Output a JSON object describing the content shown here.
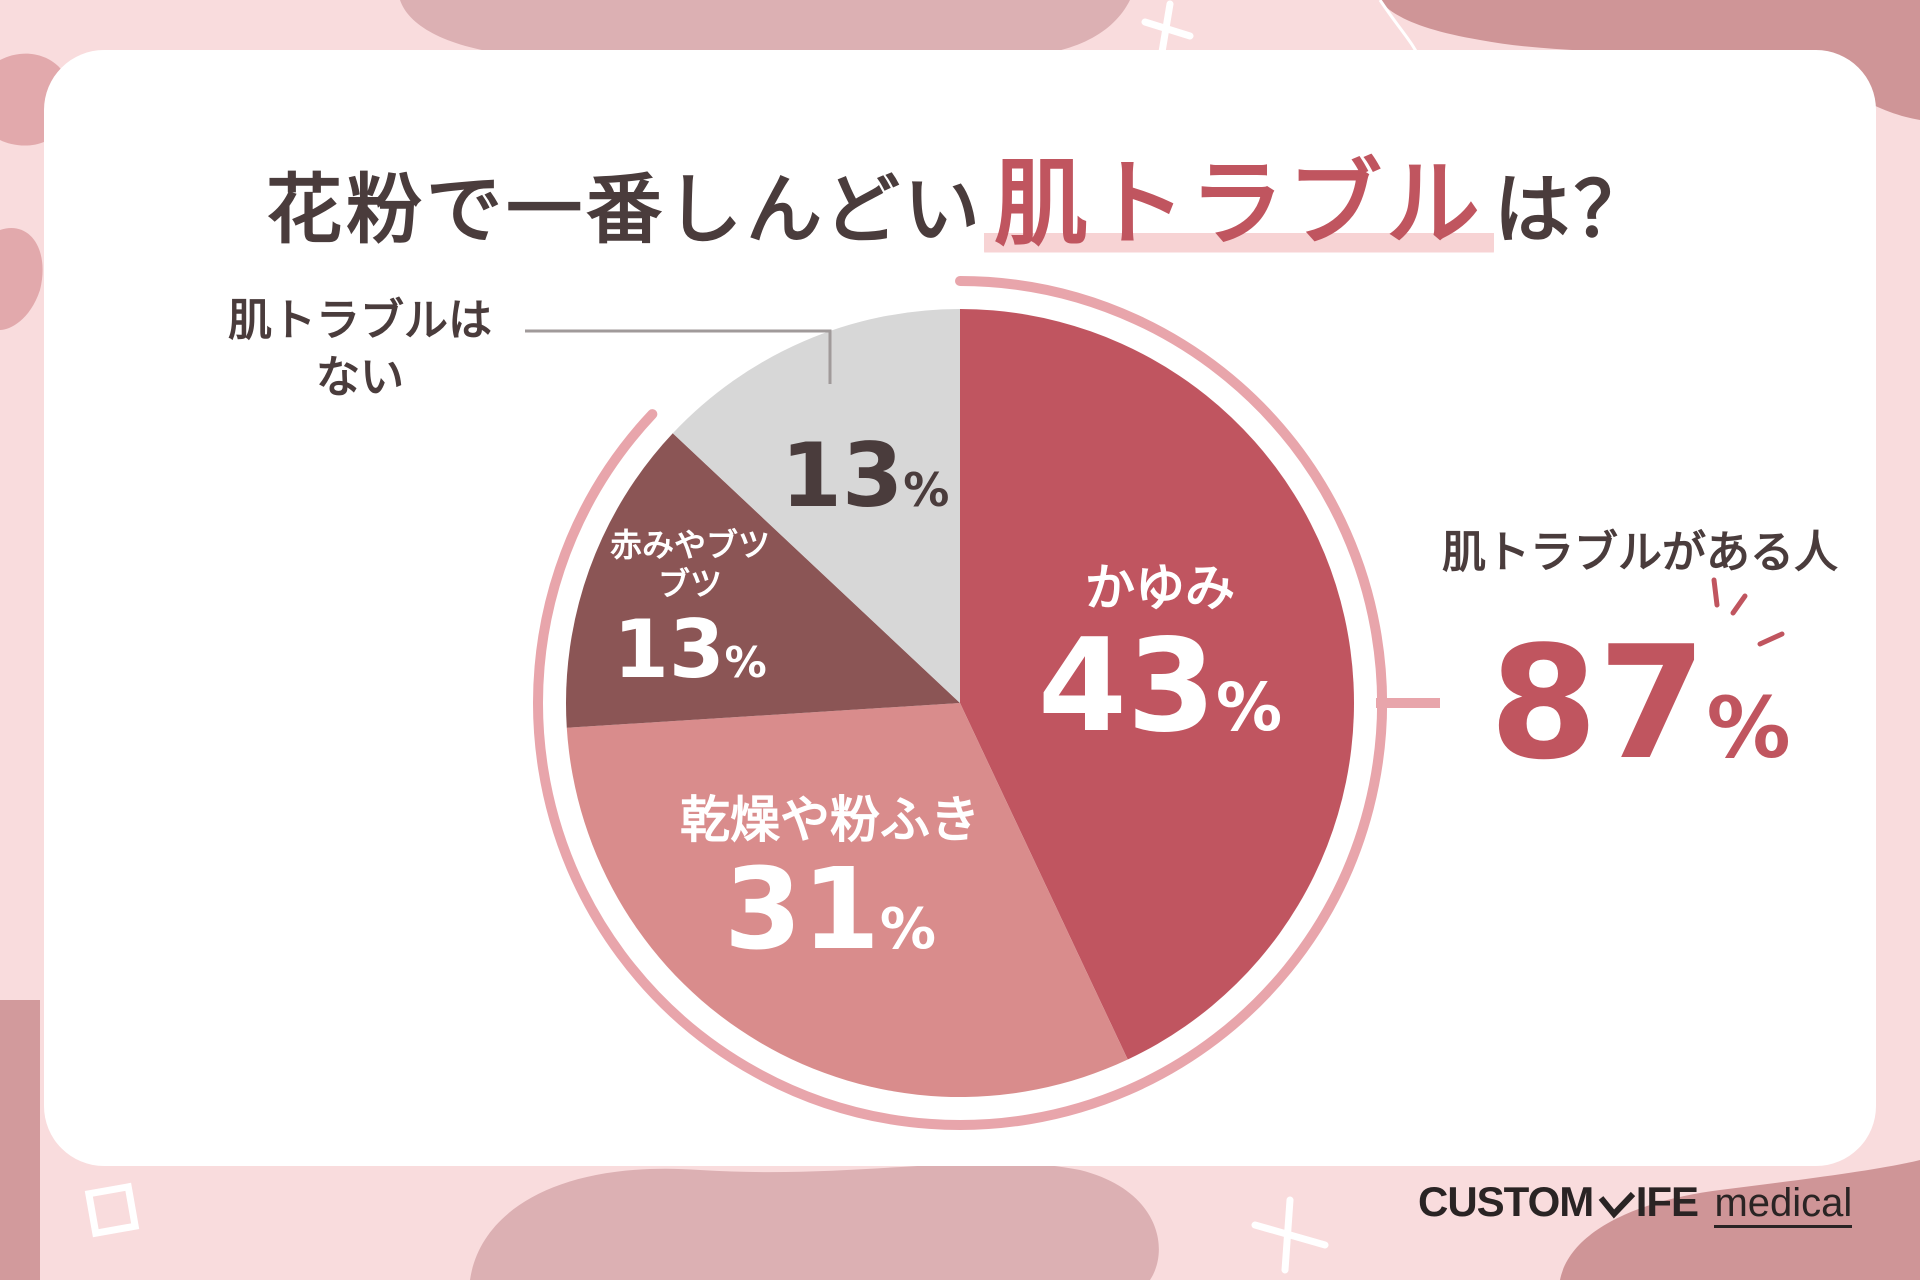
{
  "title": {
    "before": "花粉で一番しんどい",
    "highlight": "肌トラブル",
    "after": "は？"
  },
  "chart_data": {
    "type": "pie",
    "title": "花粉で一番しんどい肌トラブルは？",
    "slices": [
      {
        "label": "かゆみ",
        "value": 43,
        "pct_text": "43",
        "color": "#c05560"
      },
      {
        "label": "乾燥や粉ふき",
        "value": 31,
        "pct_text": "31",
        "color": "#d98c8c"
      },
      {
        "label": "赤みやブツブツ",
        "value": 13,
        "pct_text": "13",
        "color": "#8b5555"
      },
      {
        "label": "肌トラブルはない",
        "value": 13,
        "pct_text": "13",
        "color": "#d7d7d7"
      }
    ],
    "unit": "%",
    "group_annotation": {
      "label": "肌トラブルがある人",
      "value": 87,
      "pct_text": "87"
    }
  },
  "labels": {
    "red_name": "赤みやブツブツ",
    "none_line1": "肌トラブルは",
    "none_line2": "ない"
  },
  "colors": {
    "accent": "#c0555f",
    "ring": "#e8a5ab",
    "text": "#4a3c3c",
    "background": "#f9dcdd"
  },
  "logo": {
    "brand_left": "CUSTOM",
    "brand_right": "IFE",
    "sub": "medical"
  }
}
